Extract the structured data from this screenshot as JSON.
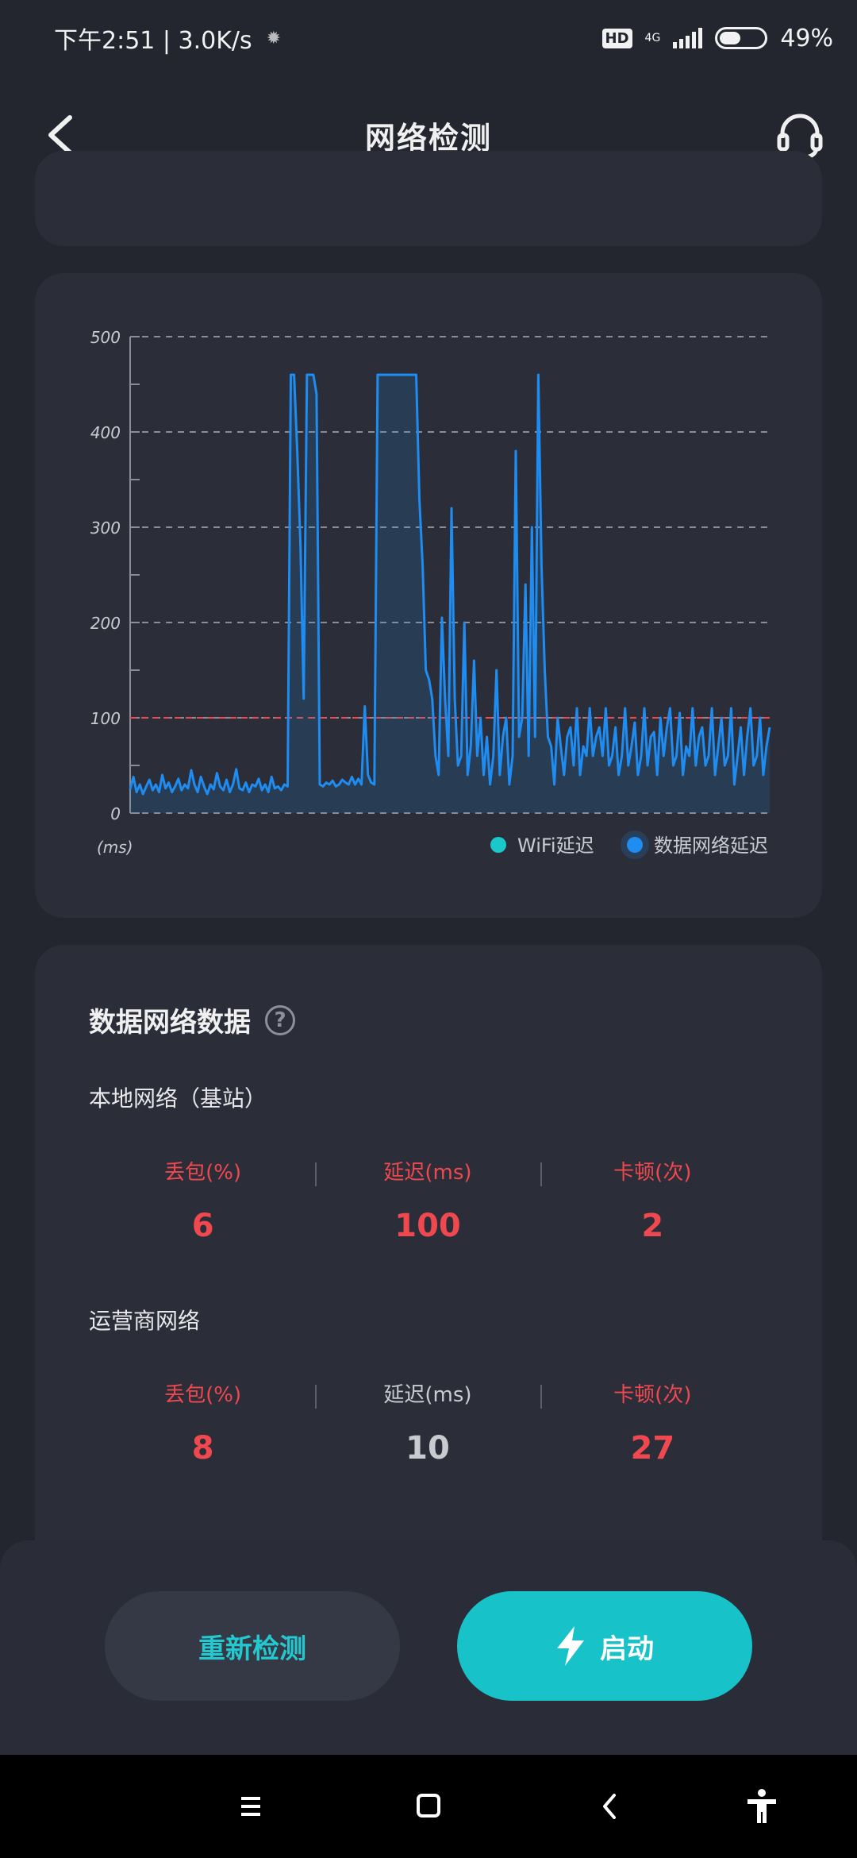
{
  "status_bar": {
    "time_speed": "下午2:51 | 3.0K/s",
    "hd": "HD",
    "network": "4G",
    "battery": "49%",
    "battery_level": 0.49
  },
  "header": {
    "title": "网络检测",
    "back_icon": "chevron-left-icon",
    "support_icon": "headset-icon"
  },
  "chart_data": {
    "type": "line",
    "ylim": [
      0,
      500
    ],
    "yticks": [
      0,
      100,
      200,
      300,
      400,
      500
    ],
    "y_unit_label": "(ms)",
    "threshold": 100,
    "legend": [
      {
        "name": "WiFi延迟",
        "color": "#1bc7c9"
      },
      {
        "name": "数据网络延迟",
        "color": "#1e8cf0"
      }
    ],
    "series": [
      {
        "name": "数据网络延迟",
        "color": "#1e8cf0",
        "values": [
          25,
          38,
          22,
          30,
          20,
          28,
          35,
          24,
          30,
          22,
          40,
          26,
          32,
          22,
          28,
          36,
          24,
          30,
          26,
          45,
          30,
          22,
          38,
          28,
          20,
          30,
          25,
          42,
          28,
          24,
          35,
          22,
          30,
          46,
          26,
          24,
          32,
          22,
          30,
          28,
          36,
          24,
          30,
          22,
          38,
          26,
          28,
          24,
          30,
          28,
          460,
          460,
          380,
          280,
          120,
          460,
          460,
          460,
          440,
          30,
          28,
          32,
          30,
          34,
          28,
          30,
          35,
          32,
          30,
          38,
          30,
          36,
          30,
          112,
          40,
          32,
          30,
          460,
          460,
          460,
          460,
          460,
          460,
          460,
          460,
          460,
          460,
          460,
          460,
          460,
          330,
          260,
          150,
          140,
          120,
          60,
          40,
          205,
          120,
          60,
          320,
          120,
          50,
          60,
          200,
          40,
          70,
          160,
          60,
          100,
          40,
          80,
          30,
          60,
          150,
          40,
          80,
          100,
          30,
          60,
          380,
          80,
          100,
          240,
          60,
          300,
          80,
          460,
          260,
          150,
          80,
          70,
          30,
          100,
          70,
          40,
          80,
          90,
          50,
          110,
          40,
          70,
          60,
          110,
          60,
          80,
          90,
          60,
          110,
          50,
          60,
          90,
          40,
          60,
          110,
          50,
          70,
          95,
          40,
          60,
          110,
          50,
          80,
          85,
          40,
          100,
          60,
          90,
          110,
          50,
          60,
          105,
          40,
          70,
          60,
          110,
          50,
          80,
          90,
          50,
          60,
          110,
          40,
          70,
          100,
          50,
          60,
          110,
          30,
          60,
          90,
          40,
          80,
          110,
          50,
          60,
          100,
          40,
          70,
          90
        ]
      }
    ]
  },
  "data_section": {
    "title": "数据网络数据",
    "help_icon": "question-circle-icon",
    "local": {
      "title": "本地网络（基站）",
      "labels": [
        "丢包(%)",
        "延迟(ms)",
        "卡顿(次)"
      ],
      "values": [
        "6",
        "100",
        "2"
      ]
    },
    "carrier": {
      "title": "运营商网络",
      "labels": [
        "丢包(%)",
        "延迟(ms)",
        "卡顿(次)"
      ],
      "values": [
        "8",
        "10",
        "27"
      ]
    },
    "colors": {
      "alert": "#f0484f",
      "normal": "#c9cbd1"
    }
  },
  "actions": {
    "retest": "重新检测",
    "start": "启动"
  },
  "nav_bar": {
    "menu_icon": "menu-icon",
    "home_icon": "home-square-icon",
    "back_icon": "back-triangle-icon",
    "accessibility_icon": "accessibility-icon"
  }
}
